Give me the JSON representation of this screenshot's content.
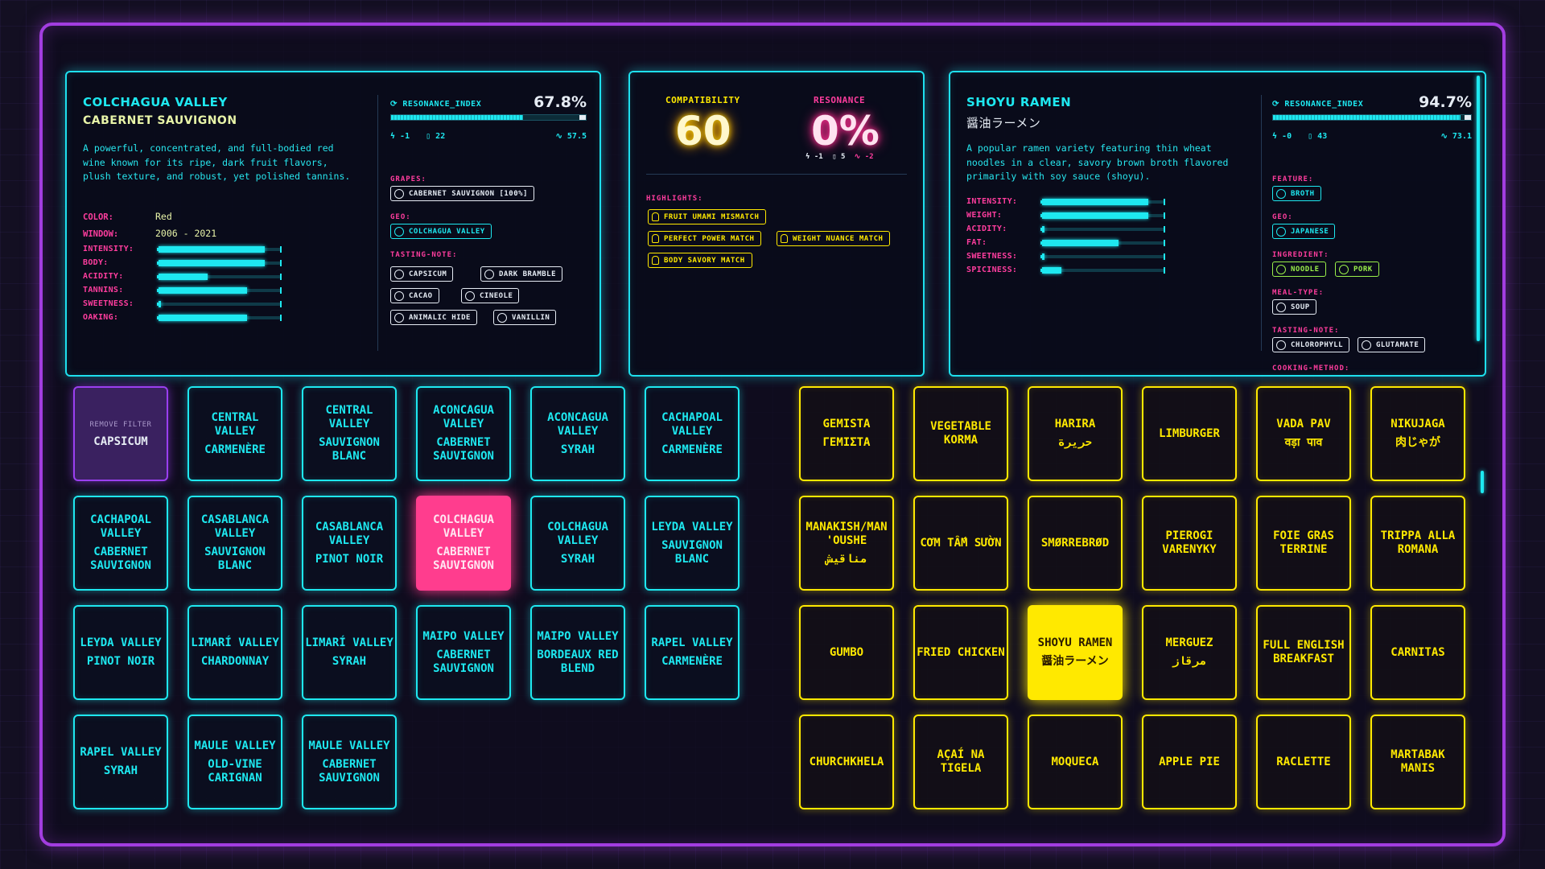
{
  "wine_card": {
    "title": "COLCHAGUA VALLEY",
    "subtitle": "CABERNET SAUVIGNON",
    "description": "A powerful, concentrated, and full-bodied red wine known for its ripe, dark fruit flavors, plush texture, and robust, yet polished tannins.",
    "color_label": "COLOR:",
    "color_value": "Red",
    "window_label": "WINDOW:",
    "window_value": "2006 - 2021",
    "meters": [
      {
        "label": "INTENSITY:",
        "value": 0.86
      },
      {
        "label": "BODY:",
        "value": 0.86
      },
      {
        "label": "ACIDITY:",
        "value": 0.4
      },
      {
        "label": "TANNINS:",
        "value": 0.72
      },
      {
        "label": "SWEETNESS:",
        "value": 0.02
      },
      {
        "label": "OAKING:",
        "value": 0.72
      }
    ],
    "resonance_label": "RESONANCE_INDEX",
    "resonance_value": "67.8%",
    "resonance_fraction": 0.678,
    "stat_a": "-1",
    "stat_b": "22",
    "stat_c": "57.5",
    "grapes_label": "GRAPES:",
    "grape": "CABERNET SAUVIGNON [100%]",
    "geo_label": "GEO:",
    "geo": "COLCHAGUA VALLEY",
    "tasting_label": "TASTING-NOTE:",
    "notes": [
      "CAPSICUM",
      "DARK BRAMBLE",
      "CACAO",
      "CINEOLE",
      "ANIMALIC HIDE",
      "VANILLIN"
    ]
  },
  "match": {
    "compat_label": "COMPATIBILITY",
    "compat_value": "60",
    "res_label": "RESONANCE",
    "res_value": "0%",
    "res_stats": [
      "-1",
      "5",
      "-2"
    ],
    "highlights_label": "HIGHLIGHTS:",
    "highlights": [
      "FRUIT UMAMI MISMATCH",
      "PERFECT POWER MATCH",
      "WEIGHT NUANCE MATCH",
      "BODY SAVORY MATCH"
    ]
  },
  "food_card": {
    "title": "SHOYU RAMEN",
    "subtitle": "醤油ラーメン",
    "description": "A popular ramen variety featuring thin wheat noodles in a clear, savory brown broth flavored primarily with soy sauce (shoyu).",
    "meters": [
      {
        "label": "INTENSITY:",
        "value": 0.86
      },
      {
        "label": "WEIGHT:",
        "value": 0.86
      },
      {
        "label": "ACIDITY:",
        "value": 0.02
      },
      {
        "label": "FAT:",
        "value": 0.62
      },
      {
        "label": "SWEETNESS:",
        "value": 0.02
      },
      {
        "label": "SPICINESS:",
        "value": 0.16
      }
    ],
    "resonance_label": "RESONANCE_INDEX",
    "resonance_value": "94.7%",
    "resonance_fraction": 0.947,
    "stat_a": "-0",
    "stat_b": "43",
    "stat_c": "73.1",
    "feature_label": "FEATURE:",
    "feature": "BROTH",
    "geo_label": "GEO:",
    "geo": "JAPANESE",
    "ingredient_label": "INGREDIENT:",
    "ingredients": [
      "NOODLE",
      "PORK"
    ],
    "meal_label": "MEAL-TYPE:",
    "meal": "SOUP",
    "tasting_label": "TASTING-NOTE:",
    "notes": [
      "CHLOROPHYLL",
      "GLUTAMATE"
    ],
    "cooking_label": "COOKING-METHOD:"
  },
  "filter": {
    "small": "REMOVE FILTER",
    "value": "CAPSICUM"
  },
  "wines": [
    [
      "CENTRAL VALLEY",
      "CARMENÈRE"
    ],
    [
      "CENTRAL VALLEY",
      "SAUVIGNON BLANC"
    ],
    [
      "ACONCAGUA VALLEY",
      "CABERNET SAUVIGNON"
    ],
    [
      "ACONCAGUA VALLEY",
      "SYRAH"
    ],
    [
      "CACHAPOAL VALLEY",
      "CARMENÈRE"
    ],
    [
      "CACHAPOAL VALLEY",
      "CABERNET SAUVIGNON"
    ],
    [
      "CASABLANCA VALLEY",
      "SAUVIGNON BLANC"
    ],
    [
      "CASABLANCA VALLEY",
      "PINOT NOIR"
    ],
    [
      "COLCHAGUA VALLEY",
      "CABERNET SAUVIGNON"
    ],
    [
      "COLCHAGUA VALLEY",
      "SYRAH"
    ],
    [
      "LEYDA VALLEY",
      "SAUVIGNON BLANC"
    ],
    [
      "LEYDA VALLEY",
      "PINOT NOIR"
    ],
    [
      "LIMARÍ VALLEY",
      "CHARDONNAY"
    ],
    [
      "LIMARÍ VALLEY",
      "SYRAH"
    ],
    [
      "MAIPO VALLEY",
      "CABERNET SAUVIGNON"
    ],
    [
      "MAIPO VALLEY",
      "BORDEAUX RED BLEND"
    ],
    [
      "RAPEL VALLEY",
      "CARMENÈRE"
    ],
    [
      "RAPEL VALLEY",
      "SYRAH"
    ],
    [
      "MAULE VALLEY",
      "OLD-VINE CARIGNAN"
    ],
    [
      "MAULE VALLEY",
      "CABERNET SAUVIGNON"
    ]
  ],
  "foods": [
    [
      "GEMISTA",
      "ΓΕΜΙΣΤΑ"
    ],
    [
      "VEGETABLE KORMA",
      ""
    ],
    [
      "HARIRA",
      "حريرة"
    ],
    [
      "LIMBURGER",
      ""
    ],
    [
      "VADA PAV",
      "वड़ा पाव"
    ],
    [
      "NIKUJAGA",
      "肉じゃが"
    ],
    [
      "MANAKISH/MAN 'OUSHE",
      "مناقيش"
    ],
    [
      "CƠM TẤM SƯỜN",
      ""
    ],
    [
      "SMØRREBRØD",
      ""
    ],
    [
      "PIEROGI VARENYKY",
      ""
    ],
    [
      "FOIE GRAS TERRINE",
      ""
    ],
    [
      "TRIPPA ALLA ROMANA",
      ""
    ],
    [
      "GUMBO",
      ""
    ],
    [
      "FRIED CHICKEN",
      ""
    ],
    [
      "SHOYU RAMEN",
      "醤油ラーメン"
    ],
    [
      "MERGUEZ",
      "مرقاز"
    ],
    [
      "FULL ENGLISH BREAKFAST",
      ""
    ],
    [
      "CARNITAS",
      ""
    ],
    [
      "CHURCHKHELA",
      ""
    ],
    [
      "AÇAÍ NA TIGELA",
      ""
    ],
    [
      "MOQUECA",
      ""
    ],
    [
      "APPLE PIE",
      ""
    ],
    [
      "RACLETTE",
      ""
    ],
    [
      "MARTABAK MANIS",
      ""
    ]
  ]
}
